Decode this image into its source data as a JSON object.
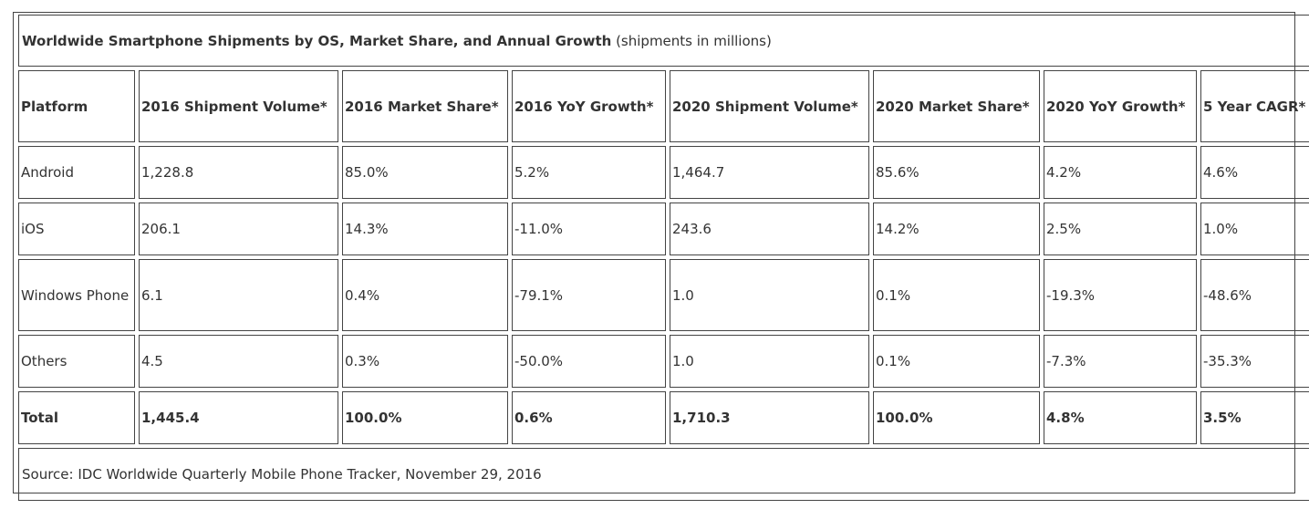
{
  "table": {
    "title_bold": "Worldwide Smartphone Shipments by OS, Market Share, and Annual Growth",
    "title_suffix": " (shipments in millions)",
    "headers": [
      "Platform",
      "2016 Shipment Volume*",
      "2016 Market Share*",
      "2016 YoY Growth*",
      "2020 Shipment Volume*",
      "2020 Market Share*",
      "2020 YoY Growth*",
      "5 Year CAGR*"
    ],
    "rows": [
      [
        "Android",
        "1,228.8",
        "85.0%",
        "5.2%",
        "1,464.7",
        "85.6%",
        "4.2%",
        "4.6%"
      ],
      [
        "iOS",
        "206.1",
        "14.3%",
        "-11.0%",
        "243.6",
        "14.2%",
        "2.5%",
        "1.0%"
      ],
      [
        "Windows Phone",
        "6.1",
        "0.4%",
        "-79.1%",
        "1.0",
        "0.1%",
        "-19.3%",
        "-48.6%"
      ],
      [
        "Others",
        "4.5",
        "0.3%",
        "-50.0%",
        "1.0",
        "0.1%",
        "-7.3%",
        "-35.3%"
      ]
    ],
    "total": [
      "Total",
      "1,445.4",
      "100.0%",
      "0.6%",
      "1,710.3",
      "100.0%",
      "4.8%",
      "3.5%"
    ],
    "source": "Source: IDC Worldwide Quarterly Mobile Phone Tracker, November 29, 2016"
  }
}
